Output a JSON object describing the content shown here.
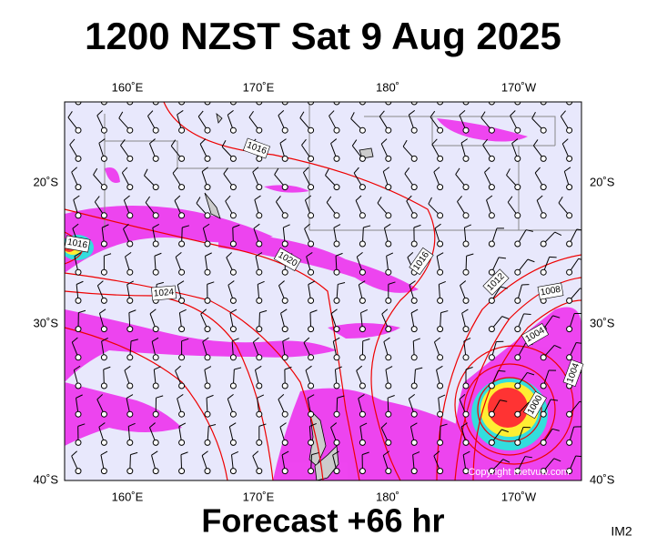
{
  "header": {
    "title": "1200 NZST Sat 9 Aug 2025"
  },
  "map": {
    "lon_labels": [
      "160˚E",
      "170˚E",
      "180˚",
      "170˚W"
    ],
    "lat_labels": [
      "20˚S",
      "30˚S",
      "40˚S"
    ],
    "isobar_labels": [
      "1016",
      "1016",
      "1020",
      "1016",
      "1024",
      "1012",
      "1008",
      "1004",
      "1004",
      "1000"
    ],
    "copyright": "Copyright metvuw.com"
  },
  "footer": {
    "forecast": "Forecast +66 hr",
    "code": "IM2"
  }
}
